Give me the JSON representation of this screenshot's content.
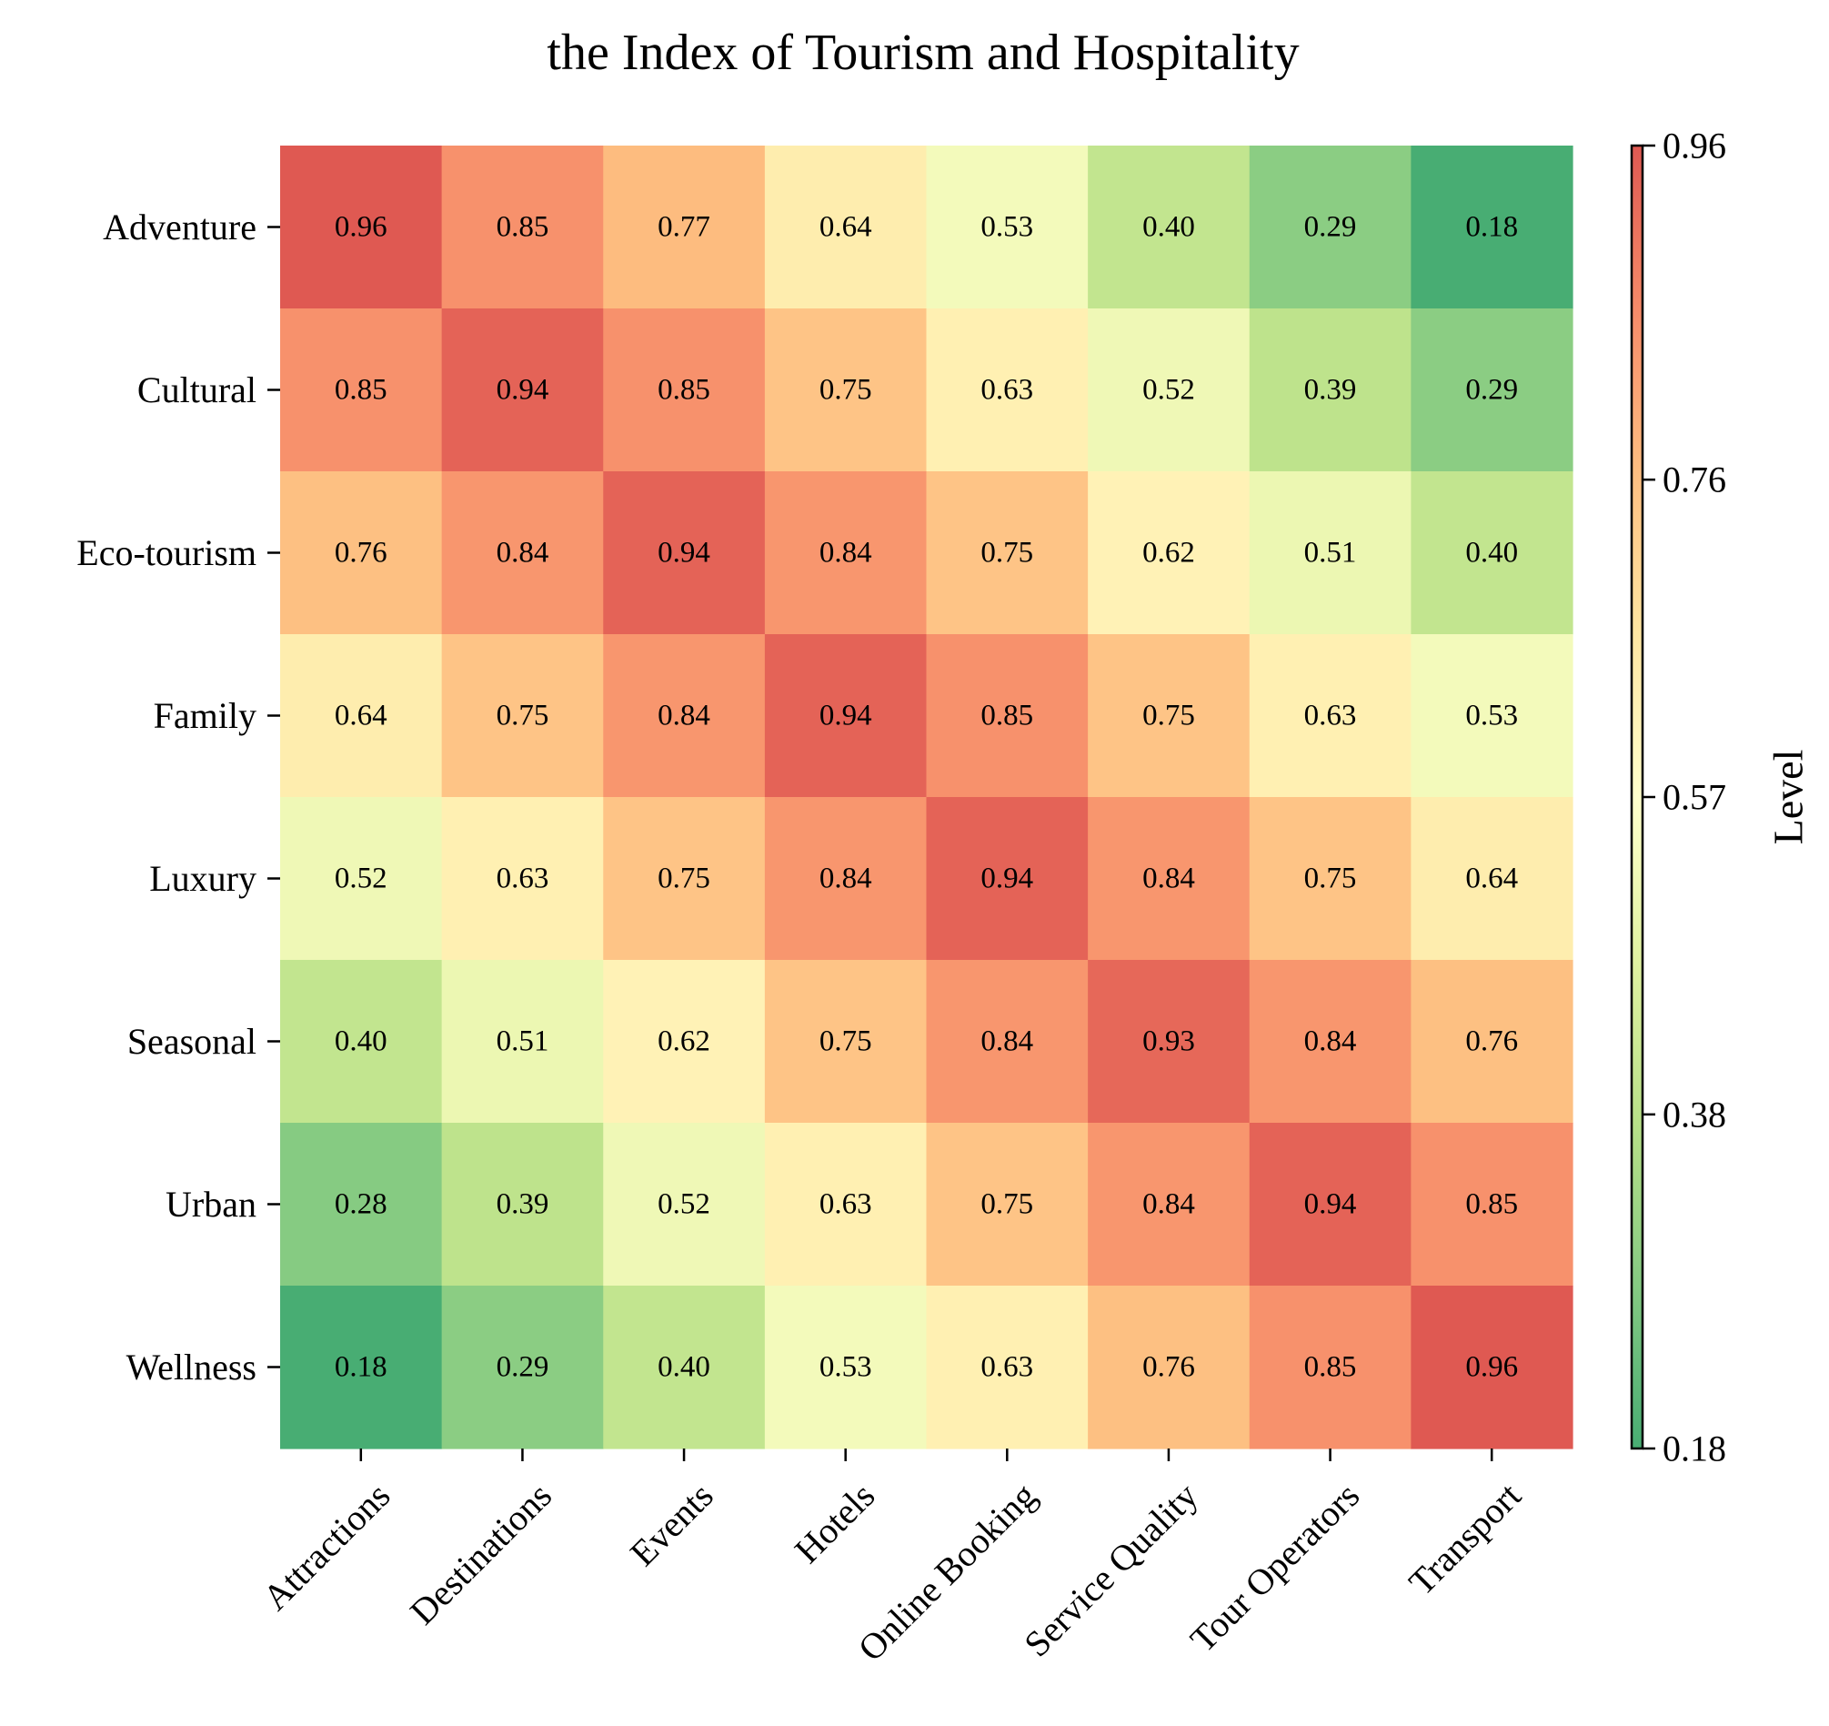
{
  "chart_data": {
    "type": "heatmap",
    "title": "the Index of Tourism and Hospitality",
    "rows": [
      "Adventure",
      "Cultural",
      "Eco-tourism",
      "Family",
      "Luxury",
      "Seasonal",
      "Urban",
      "Wellness"
    ],
    "columns": [
      "Attractions",
      "Destinations",
      "Events",
      "Hotels",
      "Online Booking",
      "Service Quality",
      "Tour Operators",
      "Transport"
    ],
    "values": [
      [
        0.96,
        0.85,
        0.77,
        0.64,
        0.53,
        0.4,
        0.29,
        0.18
      ],
      [
        0.85,
        0.94,
        0.85,
        0.75,
        0.63,
        0.52,
        0.39,
        0.29
      ],
      [
        0.76,
        0.84,
        0.94,
        0.84,
        0.75,
        0.62,
        0.51,
        0.4
      ],
      [
        0.64,
        0.75,
        0.84,
        0.94,
        0.85,
        0.75,
        0.63,
        0.53
      ],
      [
        0.52,
        0.63,
        0.75,
        0.84,
        0.94,
        0.84,
        0.75,
        0.64
      ],
      [
        0.4,
        0.51,
        0.62,
        0.75,
        0.84,
        0.93,
        0.84,
        0.76
      ],
      [
        0.28,
        0.39,
        0.52,
        0.63,
        0.75,
        0.84,
        0.94,
        0.85
      ],
      [
        0.18,
        0.29,
        0.4,
        0.53,
        0.63,
        0.76,
        0.85,
        0.96
      ]
    ],
    "value_format": "2 decimals",
    "colorbar": {
      "label": "Level",
      "range": [
        0.18,
        0.96
      ],
      "ticks": [
        "0.18",
        "0.38",
        "0.57",
        "0.76",
        "0.96"
      ],
      "colormap": [
        "#1a9850",
        "#66bd63",
        "#a6d96a",
        "#d9ef8b",
        "#ffffbf",
        "#fee08b",
        "#fdae61",
        "#f46d43",
        "#d73027"
      ],
      "alpha": 0.8
    },
    "grid": false
  }
}
